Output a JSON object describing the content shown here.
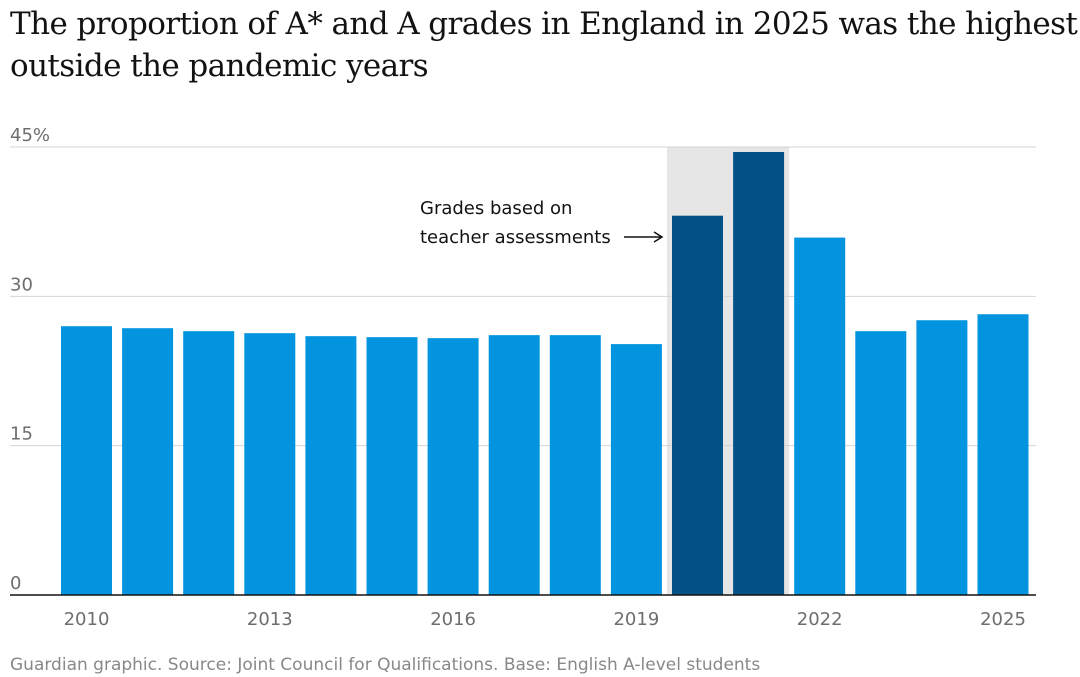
{
  "headline": {
    "line1": "The proportion of A* and A grades in England in 2025 was the highest",
    "line2": "outside the pandemic years"
  },
  "footer": "Guardian graphic. Source: Joint Council for Qualifications. Base: English A-level students",
  "chart_data": {
    "type": "bar",
    "categories": [
      "2010",
      "2011",
      "2012",
      "2013",
      "2014",
      "2015",
      "2016",
      "2017",
      "2018",
      "2019",
      "2020",
      "2021",
      "2022",
      "2023",
      "2024",
      "2025"
    ],
    "values": [
      27.0,
      26.8,
      26.5,
      26.3,
      26.0,
      25.9,
      25.8,
      26.1,
      26.1,
      25.2,
      38.1,
      44.5,
      35.9,
      26.5,
      27.6,
      28.2
    ],
    "highlight_categories": [
      "2020",
      "2021"
    ],
    "xtick_labels": [
      "2010",
      "2013",
      "2016",
      "2019",
      "2022",
      "2025"
    ],
    "ytick_labels": [
      "0",
      "15",
      "30",
      "45%"
    ],
    "ytick_values": [
      0,
      15,
      30,
      45
    ],
    "ylim": [
      0,
      45
    ],
    "title": "",
    "xlabel": "",
    "ylabel": "",
    "grid": true,
    "annotation": {
      "line1": "Grades based on",
      "line2": "teacher assessments"
    },
    "colors": {
      "bar": "#0394df",
      "highlight_bar": "#045188",
      "highlight_band": "#e6e6e6",
      "grid": "#d4d4d4",
      "axis": "#121212"
    }
  }
}
